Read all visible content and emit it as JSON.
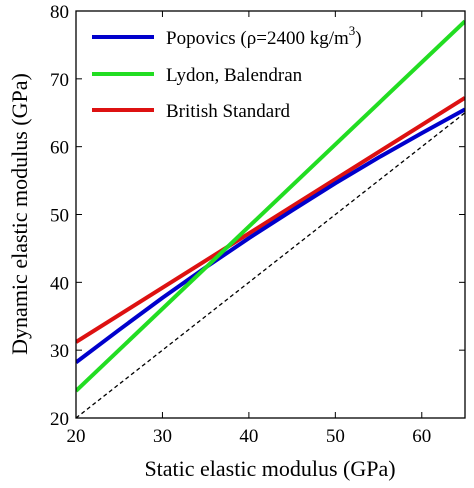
{
  "chart_data": {
    "type": "line",
    "xlabel": "Static elastic modulus (GPa)",
    "ylabel": "Dynamic elastic modulus (GPa)",
    "xlim": [
      20,
      65
    ],
    "ylim": [
      20,
      80
    ],
    "xticks": [
      "20",
      "30",
      "40",
      "50",
      "60"
    ],
    "yticks": [
      "20",
      "30",
      "40",
      "50",
      "60",
      "70",
      "80"
    ],
    "x_tick_values": [
      20,
      30,
      40,
      50,
      60
    ],
    "y_tick_values": [
      20,
      30,
      40,
      50,
      60,
      70,
      80
    ],
    "legend_placement": "top-left",
    "grid": false,
    "series": [
      {
        "name": "Popovics (ρ=2400 kg/m",
        "name_superscript": "3",
        "name_suffix": ")",
        "color": "#0000cc",
        "x": [
          20,
          25,
          30,
          35,
          40,
          45,
          50,
          55,
          60,
          65
        ],
        "y": [
          28.2,
          33.0,
          37.7,
          42.2,
          46.5,
          50.6,
          54.6,
          58.4,
          62.0,
          65.5
        ]
      },
      {
        "name": "Lydon, Balendran",
        "color": "#22dd22",
        "x": [
          20,
          65
        ],
        "y": [
          24.0,
          78.5
        ]
      },
      {
        "name": "British Standard",
        "color": "#dd1111",
        "x": [
          20,
          65
        ],
        "y": [
          31.2,
          67.2
        ]
      },
      {
        "name": "",
        "style": "dashed",
        "color": "#000000",
        "x": [
          20,
          65
        ],
        "y": [
          20,
          65
        ]
      }
    ]
  }
}
